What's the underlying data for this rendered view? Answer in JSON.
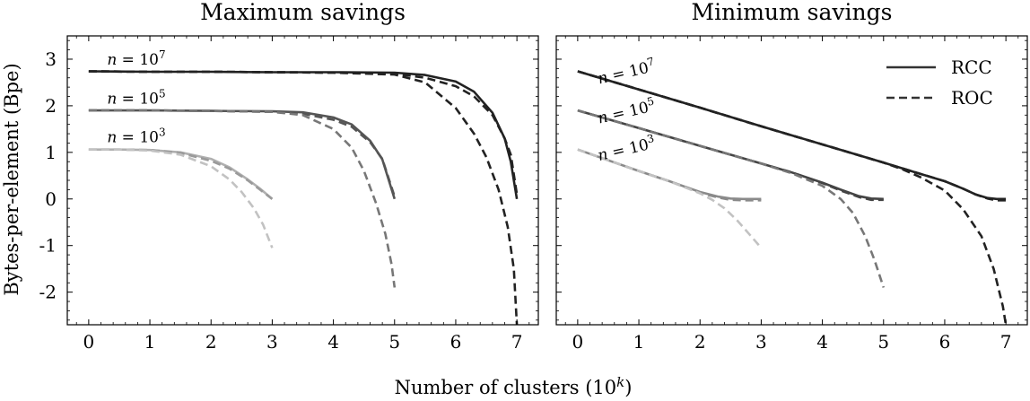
{
  "figure": {
    "ylabel": "Bytes-per-element (Bpe)",
    "xlabel_main": "Number of clusters (10",
    "xlabel_sup": "k",
    "xlabel_end": ")"
  },
  "legend": {
    "placement": "top-right of second panel",
    "entries": [
      {
        "label": "RCC",
        "style": "solid"
      },
      {
        "label": "ROC",
        "style": "dashed"
      }
    ]
  },
  "chart_data": [
    {
      "type": "line",
      "title": "Maximum savings",
      "xlim": [
        -0.35,
        7.35
      ],
      "ylim": [
        -2.7,
        3.5
      ],
      "xticks": [
        0,
        1,
        2,
        3,
        4,
        5,
        6,
        7
      ],
      "yticks": [
        -2,
        -1,
        0,
        1,
        2,
        3
      ],
      "grid": false,
      "annotations": [
        {
          "n_exp": "7",
          "x": 0.3,
          "y": 2.88
        },
        {
          "n_exp": "5",
          "x": 0.3,
          "y": 2.05
        },
        {
          "n_exp": "3",
          "x": 0.3,
          "y": 1.22
        }
      ],
      "series": [
        {
          "group": "n7",
          "style": "solid",
          "color": "#222222",
          "x": [
            0,
            1,
            2,
            3,
            4,
            5,
            5.5,
            6,
            6.3,
            6.6,
            6.8,
            6.9,
            7
          ],
          "y": [
            2.74,
            2.73,
            2.73,
            2.72,
            2.72,
            2.71,
            2.66,
            2.52,
            2.3,
            1.85,
            1.3,
            0.8,
            0.0
          ]
        },
        {
          "group": "n7",
          "style": "dashed",
          "color": "#222222",
          "x": [
            0,
            1,
            2,
            3,
            4,
            5,
            5.5,
            6,
            6.3,
            6.6,
            6.8,
            6.9,
            7
          ],
          "y": [
            2.74,
            2.73,
            2.73,
            2.72,
            2.71,
            2.69,
            2.6,
            2.42,
            2.2,
            1.8,
            1.3,
            0.95,
            0.1
          ]
        },
        {
          "group": "n7",
          "style": "dashed",
          "color": "#222222",
          "x": [
            0,
            1,
            2,
            3,
            4,
            5,
            5.5,
            6,
            6.3,
            6.5,
            6.7,
            6.85,
            6.95,
            7
          ],
          "y": [
            2.74,
            2.73,
            2.73,
            2.72,
            2.71,
            2.67,
            2.5,
            1.95,
            1.4,
            0.9,
            0.2,
            -0.6,
            -1.5,
            -2.7
          ]
        },
        {
          "group": "n5",
          "style": "solid",
          "color": "#555555",
          "x": [
            0,
            1,
            2,
            3,
            3.5,
            4,
            4.3,
            4.6,
            4.8,
            5
          ],
          "y": [
            1.9,
            1.9,
            1.89,
            1.88,
            1.86,
            1.75,
            1.6,
            1.25,
            0.85,
            0.0
          ]
        },
        {
          "group": "n5",
          "style": "dashed",
          "color": "#555555",
          "x": [
            0,
            1,
            2,
            3,
            3.5,
            4,
            4.3,
            4.6,
            4.8,
            5
          ],
          "y": [
            1.9,
            1.9,
            1.89,
            1.87,
            1.83,
            1.7,
            1.55,
            1.22,
            0.86,
            0.05
          ]
        },
        {
          "group": "n5",
          "style": "dashed",
          "color": "#777777",
          "x": [
            0,
            1,
            2,
            3,
            3.5,
            4,
            4.3,
            4.5,
            4.7,
            4.85,
            4.95,
            5
          ],
          "y": [
            1.9,
            1.9,
            1.89,
            1.87,
            1.8,
            1.5,
            1.1,
            0.6,
            -0.1,
            -0.75,
            -1.4,
            -1.9
          ]
        },
        {
          "group": "n3",
          "style": "solid",
          "color": "#b0b0b0",
          "x": [
            0,
            0.5,
            1,
            1.5,
            2,
            2.3,
            2.6,
            2.8,
            3
          ],
          "y": [
            1.06,
            1.06,
            1.05,
            1.0,
            0.86,
            0.68,
            0.42,
            0.22,
            0.0
          ]
        },
        {
          "group": "n3",
          "style": "dashed",
          "color": "#9a9a9a",
          "x": [
            0,
            0.5,
            1,
            1.5,
            2,
            2.3,
            2.6,
            2.8,
            3
          ],
          "y": [
            1.06,
            1.06,
            1.05,
            0.99,
            0.82,
            0.65,
            0.4,
            0.2,
            0.0
          ]
        },
        {
          "group": "n3",
          "style": "dashed",
          "color": "#c2c2c2",
          "x": [
            0,
            0.5,
            1,
            1.5,
            2,
            2.3,
            2.5,
            2.7,
            2.85,
            3
          ],
          "y": [
            1.06,
            1.06,
            1.04,
            0.95,
            0.7,
            0.42,
            0.15,
            -0.2,
            -0.55,
            -1.05
          ]
        }
      ]
    },
    {
      "type": "line",
      "title": "Minimum savings",
      "xlim": [
        -0.35,
        7.35
      ],
      "ylim": [
        -2.7,
        3.5
      ],
      "xticks": [
        0,
        1,
        2,
        3,
        4,
        5,
        6,
        7
      ],
      "yticks": [
        -2,
        -1,
        0,
        1,
        2,
        3
      ],
      "grid": false,
      "annotations": [
        {
          "n_exp": "7",
          "x": 0.35,
          "y": 2.47
        },
        {
          "n_exp": "5",
          "x": 0.35,
          "y": 1.62
        },
        {
          "n_exp": "3",
          "x": 0.35,
          "y": 0.82
        }
      ],
      "series": [
        {
          "group": "n7",
          "style": "solid",
          "color": "#222222",
          "x": [
            0,
            1,
            2,
            3,
            4,
            5,
            5.5,
            6,
            6.3,
            6.5,
            6.7,
            6.85,
            7
          ],
          "y": [
            2.74,
            2.35,
            1.96,
            1.56,
            1.17,
            0.78,
            0.58,
            0.38,
            0.22,
            0.1,
            0.02,
            0.0,
            0.0
          ]
        },
        {
          "group": "n7",
          "style": "dashed",
          "color": "#222222",
          "x": [
            0,
            1,
            2,
            3,
            4,
            5,
            5.5,
            6,
            6.3,
            6.5,
            6.7,
            6.85,
            7
          ],
          "y": [
            2.74,
            2.35,
            1.96,
            1.56,
            1.17,
            0.78,
            0.58,
            0.38,
            0.22,
            0.1,
            0.01,
            -0.03,
            -0.03
          ]
        },
        {
          "group": "n7",
          "style": "dashed",
          "color": "#222222",
          "x": [
            0,
            1,
            2,
            3,
            4,
            5,
            5.3,
            5.6,
            6,
            6.3,
            6.6,
            6.8,
            6.95,
            7
          ],
          "y": [
            2.74,
            2.35,
            1.96,
            1.56,
            1.17,
            0.78,
            0.64,
            0.47,
            0.18,
            -0.22,
            -0.8,
            -1.5,
            -2.3,
            -2.7
          ]
        },
        {
          "group": "n5",
          "style": "solid",
          "color": "#444444",
          "x": [
            0,
            1,
            2,
            3,
            3.5,
            4,
            4.3,
            4.6,
            4.8,
            5
          ],
          "y": [
            1.9,
            1.52,
            1.14,
            0.76,
            0.57,
            0.35,
            0.2,
            0.06,
            0.01,
            0.0
          ]
        },
        {
          "group": "n5",
          "style": "dashed",
          "color": "#444444",
          "x": [
            0,
            1,
            2,
            3,
            3.5,
            4,
            4.3,
            4.6,
            4.8,
            5
          ],
          "y": [
            1.9,
            1.52,
            1.14,
            0.76,
            0.57,
            0.34,
            0.18,
            0.04,
            -0.02,
            -0.02
          ]
        },
        {
          "group": "n5",
          "style": "dashed",
          "color": "#777777",
          "x": [
            0,
            1,
            2,
            3,
            3.5,
            4,
            4.3,
            4.5,
            4.7,
            4.85,
            5
          ],
          "y": [
            1.9,
            1.52,
            1.14,
            0.76,
            0.55,
            0.28,
            0.0,
            -0.3,
            -0.8,
            -1.3,
            -1.9
          ]
        },
        {
          "group": "n3",
          "style": "solid",
          "color": "#8a8a8a",
          "x": [
            0,
            0.5,
            1,
            1.5,
            2,
            2.3,
            2.5,
            2.7,
            3
          ],
          "y": [
            1.06,
            0.83,
            0.6,
            0.38,
            0.15,
            0.05,
            0.01,
            0.0,
            0.0
          ]
        },
        {
          "group": "n3",
          "style": "dashed",
          "color": "#8a8a8a",
          "x": [
            0,
            0.5,
            1,
            1.5,
            2,
            2.3,
            2.5,
            2.7,
            3
          ],
          "y": [
            1.06,
            0.83,
            0.6,
            0.38,
            0.13,
            0.03,
            -0.02,
            -0.03,
            -0.03
          ]
        },
        {
          "group": "n3",
          "style": "dashed",
          "color": "#c2c2c2",
          "x": [
            0,
            0.5,
            1,
            1.5,
            2,
            2.2,
            2.4,
            2.6,
            2.8,
            3
          ],
          "y": [
            1.06,
            0.83,
            0.6,
            0.38,
            0.12,
            -0.02,
            -0.2,
            -0.45,
            -0.75,
            -1.05
          ]
        }
      ]
    }
  ]
}
